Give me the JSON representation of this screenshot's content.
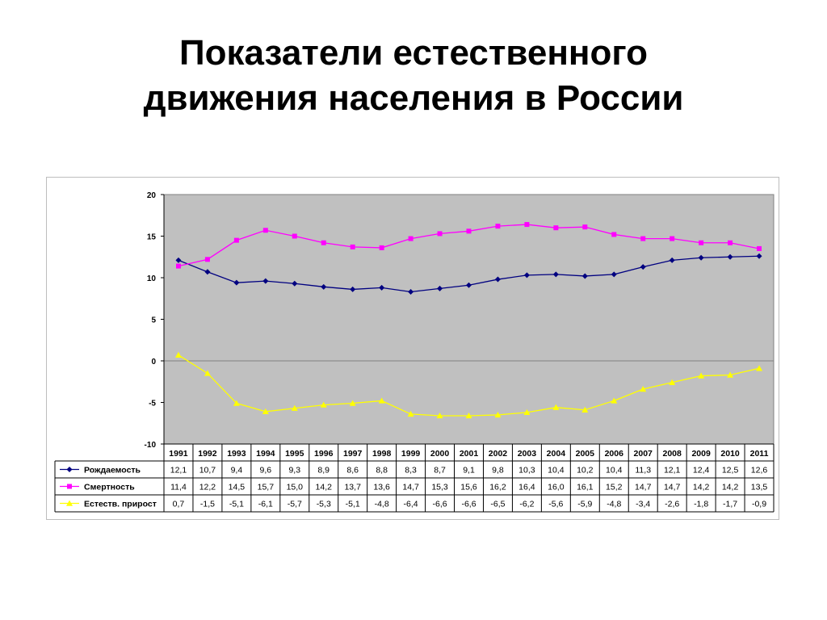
{
  "title": {
    "line1": "Показатели естественного",
    "line2": "движения населения в России"
  },
  "colors": {
    "plot_background": "#c0c0c0",
    "series_birth": "#000080",
    "series_death": "#ff00ff",
    "series_natural": "#ffff00"
  },
  "chart_data": {
    "type": "line",
    "title": "",
    "xlabel": "",
    "ylabel": "",
    "ylim": [
      -10,
      20
    ],
    "yticks": [
      20,
      15,
      10,
      5,
      0,
      -5,
      -10
    ],
    "grid": "horizontal line at 0",
    "legend": "data table below plot",
    "categories": [
      "1991",
      "1992",
      "1993",
      "1994",
      "1995",
      "1996",
      "1997",
      "1998",
      "1999",
      "2000",
      "2001",
      "2002",
      "2003",
      "2004",
      "2005",
      "2006",
      "2007",
      "2008",
      "2009",
      "2010",
      "2011"
    ],
    "series": [
      {
        "name": "Рождаемость",
        "marker": "diamond",
        "color": "#000080",
        "values": [
          12.1,
          10.7,
          9.4,
          9.6,
          9.3,
          8.9,
          8.6,
          8.8,
          8.3,
          8.7,
          9.1,
          9.8,
          10.3,
          10.4,
          10.2,
          10.4,
          11.3,
          12.1,
          12.4,
          12.5,
          12.6
        ],
        "labels": [
          "12,1",
          "10,7",
          "9,4",
          "9,6",
          "9,3",
          "8,9",
          "8,6",
          "8,8",
          "8,3",
          "8,7",
          "9,1",
          "9,8",
          "10,3",
          "10,4",
          "10,2",
          "10,4",
          "11,3",
          "12,1",
          "12,4",
          "12,5",
          "12,6"
        ]
      },
      {
        "name": "Смертность",
        "marker": "square",
        "color": "#ff00ff",
        "values": [
          11.4,
          12.2,
          14.5,
          15.7,
          15.0,
          14.2,
          13.7,
          13.6,
          14.7,
          15.3,
          15.6,
          16.2,
          16.4,
          16.0,
          16.1,
          15.2,
          14.7,
          14.7,
          14.2,
          14.2,
          13.5
        ],
        "labels": [
          "11,4",
          "12,2",
          "14,5",
          "15,7",
          "15,0",
          "14,2",
          "13,7",
          "13,6",
          "14,7",
          "15,3",
          "15,6",
          "16,2",
          "16,4",
          "16,0",
          "16,1",
          "15,2",
          "14,7",
          "14,7",
          "14,2",
          "14,2",
          "13,5"
        ]
      },
      {
        "name": "Естеств. прирост",
        "marker": "triangle",
        "color": "#ffff00",
        "values": [
          0.7,
          -1.5,
          -5.1,
          -6.1,
          -5.7,
          -5.3,
          -5.1,
          -4.8,
          -6.4,
          -6.6,
          -6.6,
          -6.5,
          -6.2,
          -5.6,
          -5.9,
          -4.8,
          -3.4,
          -2.6,
          -1.8,
          -1.7,
          -0.9
        ],
        "labels": [
          "0,7",
          "-1,5",
          "-5,1",
          "-6,1",
          "-5,7",
          "-5,3",
          "-5,1",
          "-4,8",
          "-6,4",
          "-6,6",
          "-6,6",
          "-6,5",
          "-6,2",
          "-5,6",
          "-5,9",
          "-4,8",
          "-3,4",
          "-2,6",
          "-1,8",
          "-1,7",
          "-0,9"
        ]
      }
    ]
  }
}
